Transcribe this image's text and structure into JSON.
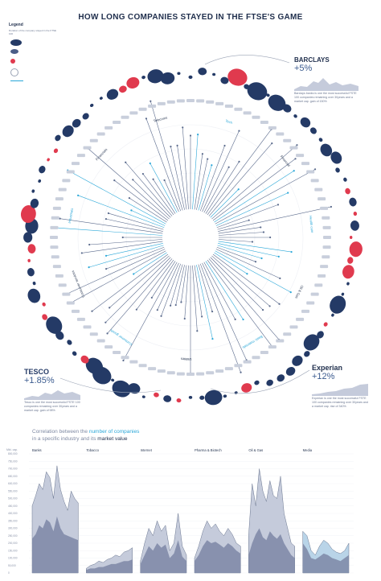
{
  "title": "HOW LONG COMPANIES STAYED IN THE FTSE'S GAME",
  "legend": {
    "title": "Legend",
    "subtitle": "Duration of the company stayed in the FTSE 100"
  },
  "radial_labels": [
    "Telecoms",
    "Tech",
    "Financial",
    "Health care",
    "Oil & Gas",
    "Basic materials",
    "Utilities",
    "Consumer goods",
    "Consumer services",
    "Industrials",
    "Financials"
  ],
  "callouts": {
    "barclays": {
      "logo": "BARCLAYS",
      "change": "+5%",
      "desc": "Barclays banks is one the most successful FSTE 100 companies remaining over 30years and a market cap. gain of 150%"
    },
    "tesco": {
      "logo": "TESCO",
      "change": "+1.85%",
      "desc": "Tesco is one the most successful FSTE 100 companies remaining over 30years and a market cap. gain of 98%"
    },
    "experian": {
      "logo": "Experian",
      "change": "+12%",
      "desc": "Experian is one the most successful FSTE 100 companies remaining over 30years and a market cap. rise of 340%"
    }
  },
  "bottom_title": {
    "line1_pre": "Correlation between the ",
    "line1_hl": "number of companies",
    "line2_pre": "in a specific industry and its ",
    "line2_bd": "market value"
  },
  "colors": {
    "navy": "#243a66",
    "red": "#e03a4e",
    "cyan": "#2aa7d8",
    "grey": "#9aa3b5",
    "area_dark": "#7d87a6",
    "area_light": "#c5cbdb",
    "area_blue": "#b9d4e8"
  },
  "chart_data": {
    "type": "area",
    "ylabel": "Mkt. cap.",
    "yticks": [
      "800,000",
      "750,000",
      "700,000",
      "650,000",
      "600,000",
      "550,000",
      "500,000",
      "450,000",
      "400,000",
      "350,000",
      "300,000",
      "250,000",
      "200,000",
      "150,000",
      "100,000",
      "50,000",
      "0"
    ],
    "ylim": [
      0,
      800000
    ],
    "panels": [
      {
        "name": "Banks",
        "market_value": [
          450000,
          520000,
          600000,
          560000,
          680000,
          640000,
          500000,
          720000,
          560000,
          480000,
          420000,
          550000,
          500000,
          470000
        ],
        "companies": [
          230000,
          260000,
          320000,
          300000,
          360000,
          340000,
          280000,
          380000,
          300000,
          260000,
          250000,
          240000,
          230000,
          220000
        ]
      },
      {
        "name": "Tobacco",
        "market_value": [
          30000,
          50000,
          60000,
          80000,
          70000,
          90000,
          100000,
          120000,
          110000,
          140000,
          150000,
          170000
        ],
        "companies": [
          20000,
          30000,
          30000,
          40000,
          40000,
          50000,
          60000,
          60000,
          70000,
          80000,
          80000,
          90000
        ]
      },
      {
        "name": "Internet",
        "market_value": [
          80000,
          200000,
          300000,
          250000,
          350000,
          280000,
          320000,
          150000,
          200000,
          400000,
          180000,
          120000
        ],
        "companies": [
          60000,
          120000,
          180000,
          150000,
          200000,
          170000,
          190000,
          100000,
          130000,
          220000,
          110000,
          80000
        ]
      },
      {
        "name": "Pharma & Biotech",
        "market_value": [
          100000,
          180000,
          280000,
          350000,
          300000,
          330000,
          280000,
          250000,
          300000,
          260000,
          200000,
          180000
        ],
        "companies": [
          80000,
          120000,
          180000,
          220000,
          200000,
          210000,
          190000,
          170000,
          200000,
          180000,
          150000,
          130000
        ]
      },
      {
        "name": "Oil & Gas",
        "market_value": [
          250000,
          600000,
          450000,
          700000,
          550000,
          480000,
          620000,
          520000,
          500000,
          650000,
          400000,
          300000,
          200000,
          180000
        ],
        "companies": [
          120000,
          200000,
          260000,
          300000,
          240000,
          220000,
          280000,
          250000,
          230000,
          260000,
          200000,
          160000,
          120000,
          100000
        ]
      },
      {
        "name": "Media",
        "market_value": [
          280000,
          250000,
          150000,
          120000,
          180000,
          220000,
          200000,
          160000,
          140000,
          130000,
          150000,
          200000
        ],
        "companies": [
          200000,
          160000,
          100000,
          90000,
          110000,
          130000,
          120000,
          100000,
          90000,
          80000,
          100000,
          120000
        ]
      }
    ]
  }
}
